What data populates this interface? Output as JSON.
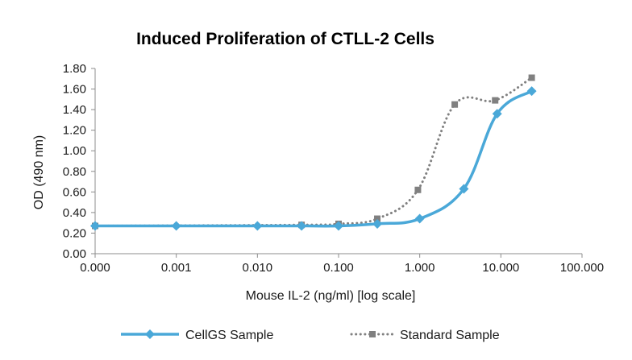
{
  "chart_data": {
    "type": "line",
    "title": "Induced Proliferation of CTLL-2 Cells",
    "xlabel": "Mouse IL-2 (ng/ml) [log scale]",
    "ylabel": "OD (490 nm)",
    "x_scale": "log",
    "x_ticks": [
      "0.000",
      "0.001",
      "0.010",
      "0.100",
      "1.000",
      "10.000",
      "100.000"
    ],
    "y_ticks": [
      "0.00",
      "0.20",
      "0.40",
      "0.60",
      "0.80",
      "1.00",
      "1.20",
      "1.40",
      "1.60",
      "1.80"
    ],
    "ylim": [
      0,
      1.8
    ],
    "grid": false,
    "legend_position": "bottom",
    "series": [
      {
        "name": "CellGS Sample",
        "color": "#4aa8d8",
        "marker": "diamond",
        "line": "solid-smooth",
        "x": [
          0.0001,
          0.001,
          0.01,
          0.035,
          0.1,
          0.3,
          1.0,
          3.5,
          9.0,
          24.0
        ],
        "y": [
          0.27,
          0.27,
          0.27,
          0.27,
          0.27,
          0.29,
          0.34,
          0.63,
          1.36,
          1.58
        ]
      },
      {
        "name": "Standard Sample",
        "color": "#808080",
        "marker": "square",
        "line": "dotted-smooth",
        "x": [
          0.0001,
          0.035,
          0.1,
          0.3,
          0.95,
          2.7,
          8.5,
          24.0
        ],
        "y": [
          0.27,
          0.28,
          0.29,
          0.34,
          0.62,
          1.45,
          1.49,
          1.71
        ]
      }
    ]
  }
}
